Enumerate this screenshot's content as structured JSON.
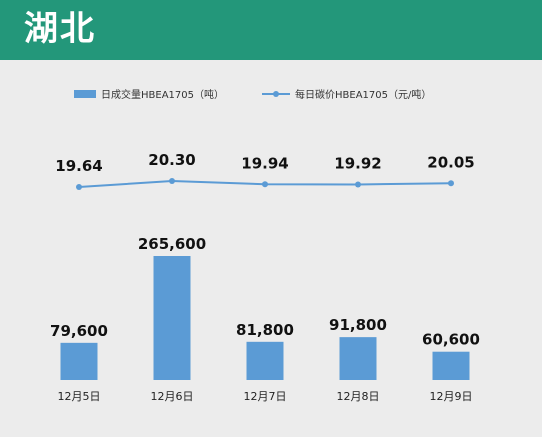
{
  "header": {
    "title": "湖北"
  },
  "colors": {
    "header_bg": "#23977a",
    "bar": "#5b9bd5",
    "line": "#5b9bd5",
    "background": "#ececec"
  },
  "chart_data": {
    "type": "bar+line",
    "categories": [
      "12月5日",
      "12月6日",
      "12月7日",
      "12月8日",
      "12月9日"
    ],
    "series": [
      {
        "name": "日成交量HBEA1705（吨）",
        "type": "bar",
        "values": [
          79600,
          265600,
          81800,
          91800,
          60600
        ],
        "labels": [
          "79,600",
          "265,600",
          "81,800",
          "91,800",
          "60,600"
        ]
      },
      {
        "name": "每日碳价HBEA1705（元/吨）",
        "type": "line",
        "values": [
          19.64,
          20.3,
          19.94,
          19.92,
          20.05
        ],
        "labels": [
          "19.64",
          "20.30",
          "19.94",
          "19.92",
          "20.05"
        ]
      }
    ],
    "legend_position": "top-left",
    "grid": false
  }
}
